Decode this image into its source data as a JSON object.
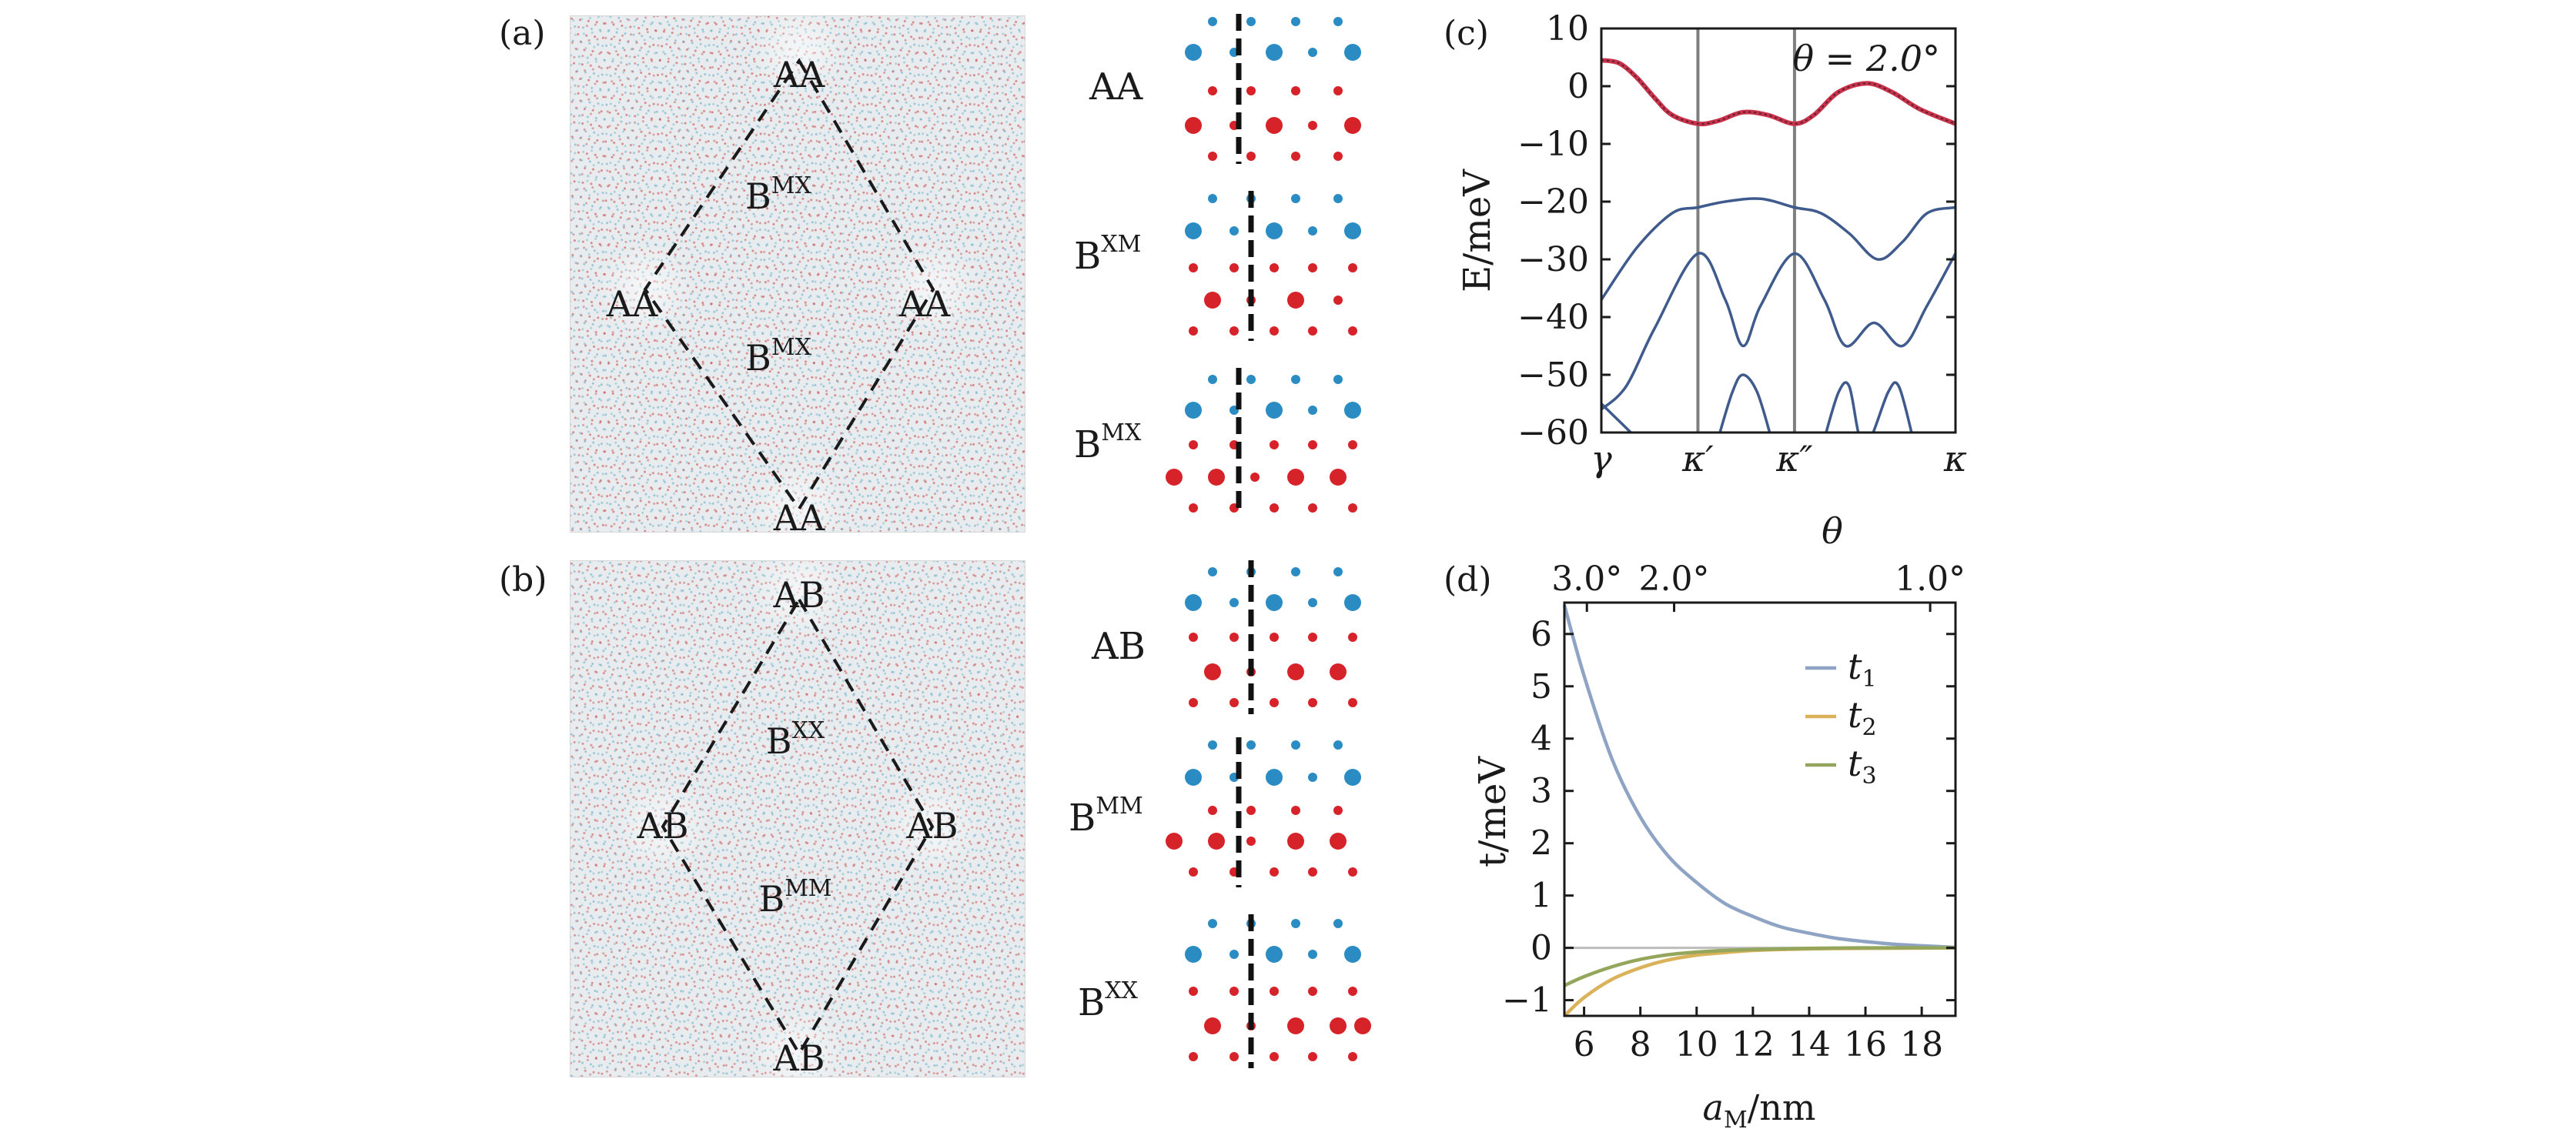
{
  "panel_a": {
    "letter": "(a)",
    "sites": {
      "top": "AA",
      "left": "AA",
      "right": "AA",
      "bottom": "AA"
    },
    "inner_upper": {
      "base": "B",
      "sup": "MX"
    },
    "inner_lower": {
      "base": "B",
      "sup": "MX"
    },
    "stacking": [
      {
        "base": "AA",
        "sup": ""
      },
      {
        "base": "B",
        "sup": "XM"
      },
      {
        "base": "B",
        "sup": "MX"
      }
    ]
  },
  "panel_b": {
    "letter": "(b)",
    "sites": {
      "top": "AB",
      "left": "AB",
      "right": "AB",
      "bottom": "AB"
    },
    "inner_upper": {
      "base": "B",
      "sup": "XX"
    },
    "inner_lower": {
      "base": "B",
      "sup": "MM"
    },
    "stacking": [
      {
        "base": "AB",
        "sup": ""
      },
      {
        "base": "B",
        "sup": "MM"
      },
      {
        "base": "B",
        "sup": "XX"
      }
    ]
  },
  "colors": {
    "metal_atom": "#2b8cc4",
    "chalcogen_atom": "#d6232a",
    "band_red": "#c8324a",
    "band_blue": "#3f5a8c",
    "t1": "#8fa4c4",
    "t2": "#d9b25a",
    "t3": "#94a65c",
    "kpath_line": "#7f7f7f"
  },
  "chart_data": [
    {
      "type": "line",
      "panel": "(c)",
      "annotation": "θ = 2.0°",
      "ylabel": "E/meV",
      "xlabel": "θ",
      "ylim": [
        -60,
        10
      ],
      "yticks": [
        "10",
        "0",
        "−10",
        "−20",
        "−30",
        "−40",
        "−50",
        "−60"
      ],
      "ytick_values": [
        10,
        0,
        -10,
        -20,
        -30,
        -40,
        -50,
        -60
      ],
      "xticks": [
        "γ",
        "κ′",
        "κ″",
        "κ"
      ],
      "xtick_positions": [
        0,
        0.2727,
        0.5455,
        1.0
      ],
      "series": [
        {
          "role": "topmost band (red)",
          "x": [
            0,
            0.05,
            0.1,
            0.15,
            0.2,
            0.2727,
            0.33,
            0.4,
            0.47,
            0.5455,
            0.6,
            0.67,
            0.75,
            0.82,
            0.9,
            1.0
          ],
          "y": [
            4.5,
            4,
            1.5,
            -2,
            -5,
            -6.5,
            -6,
            -4.5,
            -5,
            -6.5,
            -5,
            -1,
            0.5,
            -1,
            -4,
            -6.5
          ]
        },
        {
          "role": "band 2",
          "x": [
            0,
            0.1,
            0.2,
            0.2727,
            0.35,
            0.45,
            0.5455,
            0.62,
            0.7,
            0.78,
            0.85,
            0.92,
            1.0
          ],
          "y": [
            -37,
            -28,
            -22,
            -21,
            -20,
            -19.5,
            -21,
            -22,
            -25.5,
            -30,
            -27,
            -22,
            -21
          ]
        },
        {
          "role": "band 3",
          "x": [
            0,
            0.07,
            0.15,
            0.2727,
            0.35,
            0.4,
            0.45,
            0.5455,
            0.63,
            0.69,
            0.77,
            0.85,
            0.92,
            1.0
          ],
          "y": [
            -56,
            -52,
            -42,
            -29,
            -37,
            -45,
            -38,
            -29,
            -37,
            -45,
            -41,
            -45,
            -38,
            -29
          ]
        },
        {
          "role": "band 4 (partial)",
          "x": [
            0,
            0.05,
            0.1
          ],
          "y": [
            -55,
            -58,
            -61
          ]
        },
        {
          "role": "band 5 (partial)",
          "x": [
            0.33,
            0.37,
            0.4,
            0.44,
            0.48
          ],
          "y": [
            -61,
            -53,
            -50,
            -53,
            -61
          ]
        },
        {
          "role": "band 6 (partial)",
          "x": [
            0.63,
            0.67,
            0.7,
            0.73,
            0.76,
            0.81,
            0.84,
            0.88
          ],
          "y": [
            -61,
            -53,
            -52,
            -61,
            -61,
            -53,
            -52,
            -61
          ]
        }
      ]
    },
    {
      "type": "line",
      "panel": "(d)",
      "xlabel_base": "a",
      "xlabel_sub": "M",
      "xlabel_unit": "/nm",
      "ylabel": "t/meV",
      "xlim": [
        5.3,
        19.2
      ],
      "ylim": [
        -1.3,
        6.6
      ],
      "xticks": [
        "6",
        "8",
        "10",
        "12",
        "14",
        "16",
        "18"
      ],
      "xtick_values": [
        6,
        8,
        10,
        12,
        14,
        16,
        18
      ],
      "yticks": [
        "6",
        "5",
        "4",
        "3",
        "2",
        "1",
        "0",
        "−1"
      ],
      "ytick_values": [
        6,
        5,
        4,
        3,
        2,
        1,
        0,
        -1
      ],
      "top_axis_ticks": [
        "3.0°",
        "2.0°",
        "1.0°"
      ],
      "top_axis_positions": [
        6.1,
        9.2,
        18.3
      ],
      "series": [
        {
          "name": "t",
          "sub": "1",
          "x": [
            5.3,
            6,
            7,
            8,
            9,
            10,
            11,
            12,
            13,
            14,
            15,
            16,
            17,
            18,
            19.2
          ],
          "y": [
            6.55,
            5.2,
            3.6,
            2.5,
            1.75,
            1.25,
            0.85,
            0.6,
            0.4,
            0.28,
            0.18,
            0.12,
            0.07,
            0.04,
            0.01
          ]
        },
        {
          "name": "t",
          "sub": "2",
          "x": [
            5.3,
            6,
            7,
            8,
            9,
            10,
            11,
            12,
            14,
            16,
            19.2
          ],
          "y": [
            -1.3,
            -0.95,
            -0.6,
            -0.38,
            -0.23,
            -0.14,
            -0.09,
            -0.05,
            -0.02,
            -0.01,
            0
          ]
        },
        {
          "name": "t",
          "sub": "3",
          "x": [
            5.3,
            6,
            7,
            8,
            9,
            10,
            11,
            12,
            14,
            16,
            19.2
          ],
          "y": [
            -0.72,
            -0.55,
            -0.36,
            -0.22,
            -0.13,
            -0.08,
            -0.05,
            -0.03,
            -0.01,
            0,
            0
          ]
        }
      ]
    }
  ]
}
